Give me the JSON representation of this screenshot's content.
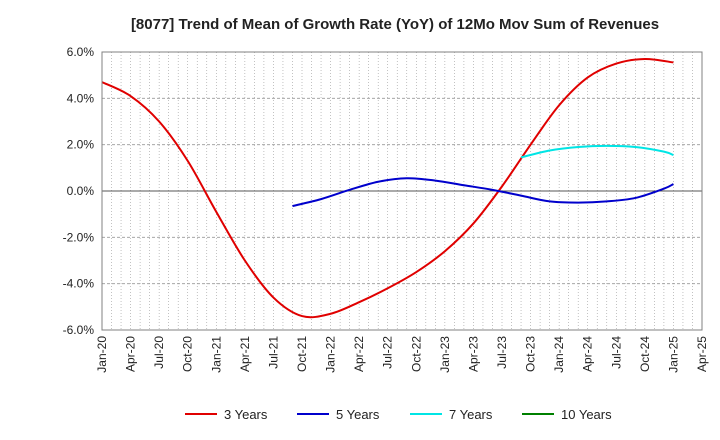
{
  "chart_data": {
    "type": "line",
    "title": "[8077]  Trend of Mean of Growth Rate (YoY) of 12Mo Mov Sum of Revenues",
    "xlabel": "",
    "ylabel": "",
    "ylim": [
      -6.0,
      6.0
    ],
    "y_ticks": [
      6.0,
      4.0,
      2.0,
      0.0,
      -2.0,
      -4.0,
      -6.0
    ],
    "y_tick_labels": [
      "6.0%",
      "4.0%",
      "2.0%",
      "0.0%",
      "-2.0%",
      "-4.0%",
      "-6.0%"
    ],
    "x_tick_labels": [
      "Jan-20",
      "Apr-20",
      "Jul-20",
      "Oct-20",
      "Jan-21",
      "Apr-21",
      "Jul-21",
      "Oct-21",
      "Jan-22",
      "Apr-22",
      "Jul-22",
      "Oct-22",
      "Jan-23",
      "Apr-23",
      "Jul-23",
      "Oct-23",
      "Jan-24",
      "Apr-24",
      "Jul-24",
      "Oct-24",
      "Jan-25",
      "Apr-25"
    ],
    "x_start": "Jan-20",
    "x_end": "Apr-25",
    "x_unit": "months since Jan-20",
    "grid": true,
    "legend_position": "bottom",
    "series": [
      {
        "name": "3 Years",
        "color": "#e00000",
        "x": [
          0,
          3,
          6,
          9,
          12,
          15,
          18,
          21,
          24,
          27,
          30,
          33,
          36,
          39,
          42,
          45,
          48,
          51,
          54,
          57,
          60
        ],
        "values": [
          4.7,
          4.1,
          3.0,
          1.3,
          -0.9,
          -3.0,
          -4.6,
          -5.4,
          -5.3,
          -4.8,
          -4.2,
          -3.5,
          -2.6,
          -1.4,
          0.2,
          2.0,
          3.7,
          4.9,
          5.5,
          5.7,
          5.55
        ]
      },
      {
        "name": "5 Years",
        "color": "#0000cc",
        "x": [
          20,
          23,
          26,
          29,
          32,
          35,
          38,
          41,
          44,
          47,
          50,
          53,
          56,
          59,
          60
        ],
        "values": [
          -0.65,
          -0.35,
          0.05,
          0.4,
          0.55,
          0.45,
          0.25,
          0.05,
          -0.2,
          -0.45,
          -0.5,
          -0.45,
          -0.3,
          0.1,
          0.3
        ]
      },
      {
        "name": "7 Years",
        "color": "#00e5e5",
        "x": [
          44,
          47,
          50,
          53,
          56,
          59,
          60
        ],
        "values": [
          1.45,
          1.75,
          1.9,
          1.95,
          1.9,
          1.7,
          1.55
        ]
      },
      {
        "name": "10 Years",
        "color": "#008000",
        "x": [],
        "values": []
      }
    ]
  }
}
